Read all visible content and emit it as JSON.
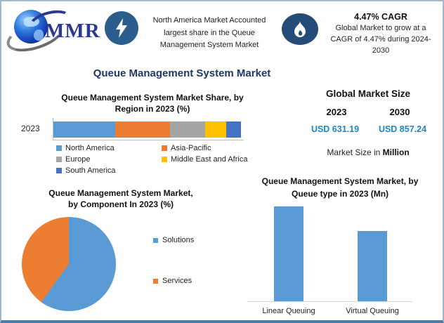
{
  "header": {
    "logo_text": "MMR",
    "north_america_note": "North America Market Accounted\nlargest share in the Queue\nManagement System Market",
    "cagr_title": "4.47% CAGR",
    "cagr_note": "Global Market to grow at a\nCAGR of 4.47% during 2024-\n2030"
  },
  "page_title": "Queue Management System Market",
  "market_size": {
    "title": "Global Market Size",
    "years": [
      "2023",
      "2030"
    ],
    "values": [
      "USD 631.19",
      "USD 857.24"
    ],
    "note_prefix": "Market Size in ",
    "note_bold": "Million"
  },
  "colors": {
    "accent_navy": "#203864",
    "usd_blue": "#1b87ca",
    "icon_blue": "#2b5e8c",
    "icon_navy": "#254b78"
  },
  "chart_data": [
    {
      "type": "bar",
      "subtype": "stacked-horizontal",
      "title": "Queue Management System Market Share, by\nRegion in 2023 (%)",
      "categories": [
        "2023"
      ],
      "series": [
        {
          "name": "North America",
          "color": "#5B9BD5",
          "values": [
            33
          ]
        },
        {
          "name": "Asia-Pacific",
          "color": "#ED7D31",
          "values": [
            29
          ]
        },
        {
          "name": "Europe",
          "color": "#A5A5A5",
          "values": [
            19
          ]
        },
        {
          "name": "Middle East and Africa",
          "color": "#FFC000",
          "values": [
            11
          ]
        },
        {
          "name": "South America",
          "color": "#4472C4",
          "values": [
            8
          ]
        }
      ],
      "xlim": [
        0,
        100
      ],
      "grid": false,
      "legend_position": "bottom"
    },
    {
      "type": "pie",
      "title": "Queue Management System Market,\nby Component In 2023 (%)",
      "labels": [
        "Solutions",
        "Services"
      ],
      "values": [
        60,
        40
      ],
      "colors": [
        "#5B9BD5",
        "#ED7D31"
      ],
      "start_angle_deg": 0,
      "legend_position": "right"
    },
    {
      "type": "bar",
      "title": "Queue Management System Market, by\nQueue type in 2023 (Mn)",
      "categories": [
        "Linear Queuing",
        "Virtual Queuing"
      ],
      "values": [
        100,
        74
      ],
      "bar_color": "#5B9BD5",
      "ylabel": "",
      "grid": false,
      "note": "no numeric axis or data labels shown; values are relative bar heights"
    }
  ]
}
